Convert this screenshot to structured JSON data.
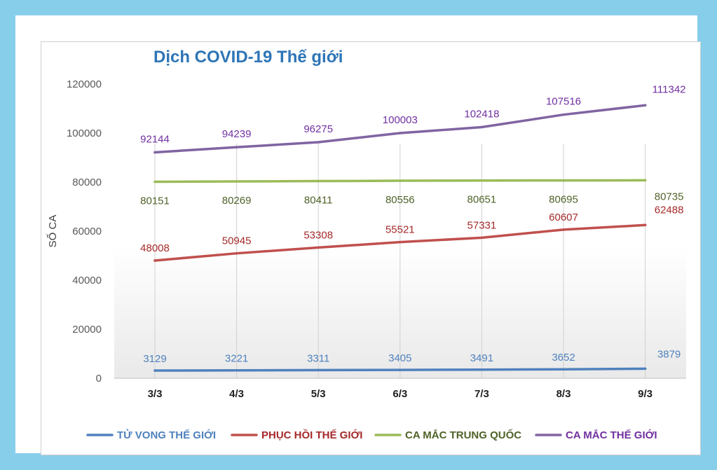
{
  "chart_data": {
    "type": "line",
    "title": "Dịch COVID-19 Thế giới",
    "xlabel": "",
    "ylabel": "SỐ CA",
    "ylim": [
      0,
      120000
    ],
    "yticks": [
      "0",
      "20000",
      "40000",
      "60000",
      "80000",
      "100000",
      "120000"
    ],
    "categories": [
      "3/3",
      "4/3",
      "5/3",
      "6/3",
      "7/3",
      "8/3",
      "9/3"
    ],
    "legend_position": "bottom",
    "grid": "vertical",
    "series": [
      {
        "name": "TỬ VONG THẾ GIỚI",
        "color": "#4f81bd",
        "label_color": "#4f81bd",
        "values": [
          3129,
          3221,
          3311,
          3405,
          3491,
          3652,
          3879
        ]
      },
      {
        "name": "PHỤC HỒI THẾ GIỚI",
        "color": "#c0504d",
        "label_color": "#a52a2a",
        "values": [
          48008,
          50945,
          53308,
          55521,
          57331,
          60607,
          62488
        ]
      },
      {
        "name": "CA MẮC TRUNG QUỐC",
        "color": "#9bbb59",
        "label_color": "#4f6228",
        "values": [
          80151,
          80269,
          80411,
          80556,
          80651,
          80695,
          80735
        ]
      },
      {
        "name": "CA MẮC THẾ GIỚI",
        "color": "#8064a2",
        "label_color": "#7030a0",
        "values": [
          92144,
          94239,
          96275,
          100003,
          102418,
          107516,
          111342
        ]
      }
    ]
  }
}
